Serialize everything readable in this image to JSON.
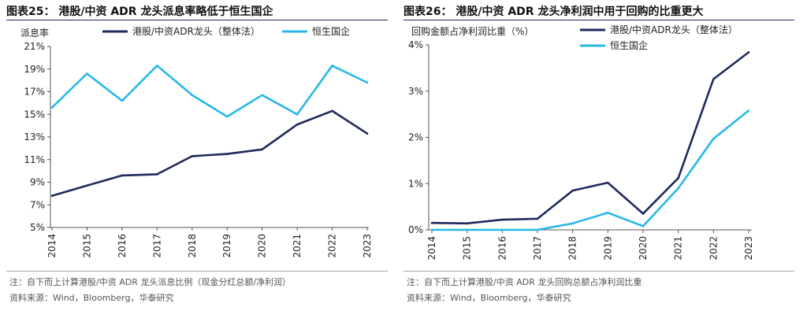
{
  "panels": [
    {
      "title": "图表25：  港股/中资 ADR 龙头派息率略低于恒生国企",
      "note": "注：自下而上计算港股/中资 ADR 龙头派息比例（现金分红总额/净利润）",
      "source": "资料来源：Wind，Bloomberg，华泰研究"
    },
    {
      "title": "图表26：  港股/中资 ADR 龙头净利润中用于回购的比重更大",
      "note": "注：自下而上计算港股/中资 ADR 龙头回购总额占净利润比重",
      "source": "资料来源：Wind，Bloomberg，华泰研究"
    }
  ],
  "colors": {
    "dark": "#1f2a5c",
    "light": "#27b8e6",
    "axis": "#555555"
  },
  "chart_data": [
    {
      "type": "line",
      "ylabel": "派息率",
      "x": [
        "2014",
        "2015",
        "2016",
        "2017",
        "2018",
        "2019",
        "2020",
        "2021",
        "2022",
        "2023"
      ],
      "ylim": [
        5,
        21
      ],
      "yticks": [
        5,
        7,
        9,
        11,
        13,
        15,
        17,
        19,
        21
      ],
      "ytick_labels": [
        "5%",
        "7%",
        "9%",
        "11%",
        "13%",
        "15%",
        "17%",
        "19%",
        "21%"
      ],
      "grid": false,
      "legend_position": "top",
      "series": [
        {
          "name": "港股/中资ADR龙头（整体法）",
          "color": "#1f2a5c",
          "values": [
            7.8,
            8.7,
            9.6,
            9.7,
            11.3,
            11.5,
            11.9,
            14.1,
            15.3,
            13.3
          ]
        },
        {
          "name": "恒生国企",
          "color": "#27b8e6",
          "values": [
            15.6,
            18.6,
            16.2,
            19.3,
            16.7,
            14.8,
            16.7,
            15.0,
            19.3,
            17.8
          ]
        }
      ]
    },
    {
      "type": "line",
      "ylabel": "回购金额占净利润比重（%）",
      "x": [
        "2014",
        "2015",
        "2016",
        "2017",
        "2018",
        "2019",
        "2020",
        "2021",
        "2022",
        "2023"
      ],
      "ylim": [
        0,
        4
      ],
      "yticks": [
        0,
        1,
        2,
        3,
        4
      ],
      "ytick_labels": [
        "0%",
        "1%",
        "2%",
        "3%",
        "4%"
      ],
      "grid": false,
      "legend_position": "top-right",
      "series": [
        {
          "name": "港股/中资ADR龙头（整体法）",
          "color": "#1f2a5c",
          "values": [
            0.15,
            0.14,
            0.22,
            0.24,
            0.85,
            1.02,
            0.35,
            1.12,
            3.26,
            3.84
          ]
        },
        {
          "name": "恒生国企",
          "color": "#27b8e6",
          "values": [
            0.0,
            0.0,
            0.0,
            0.0,
            0.14,
            0.37,
            0.08,
            0.9,
            1.97,
            2.58
          ]
        }
      ]
    }
  ]
}
